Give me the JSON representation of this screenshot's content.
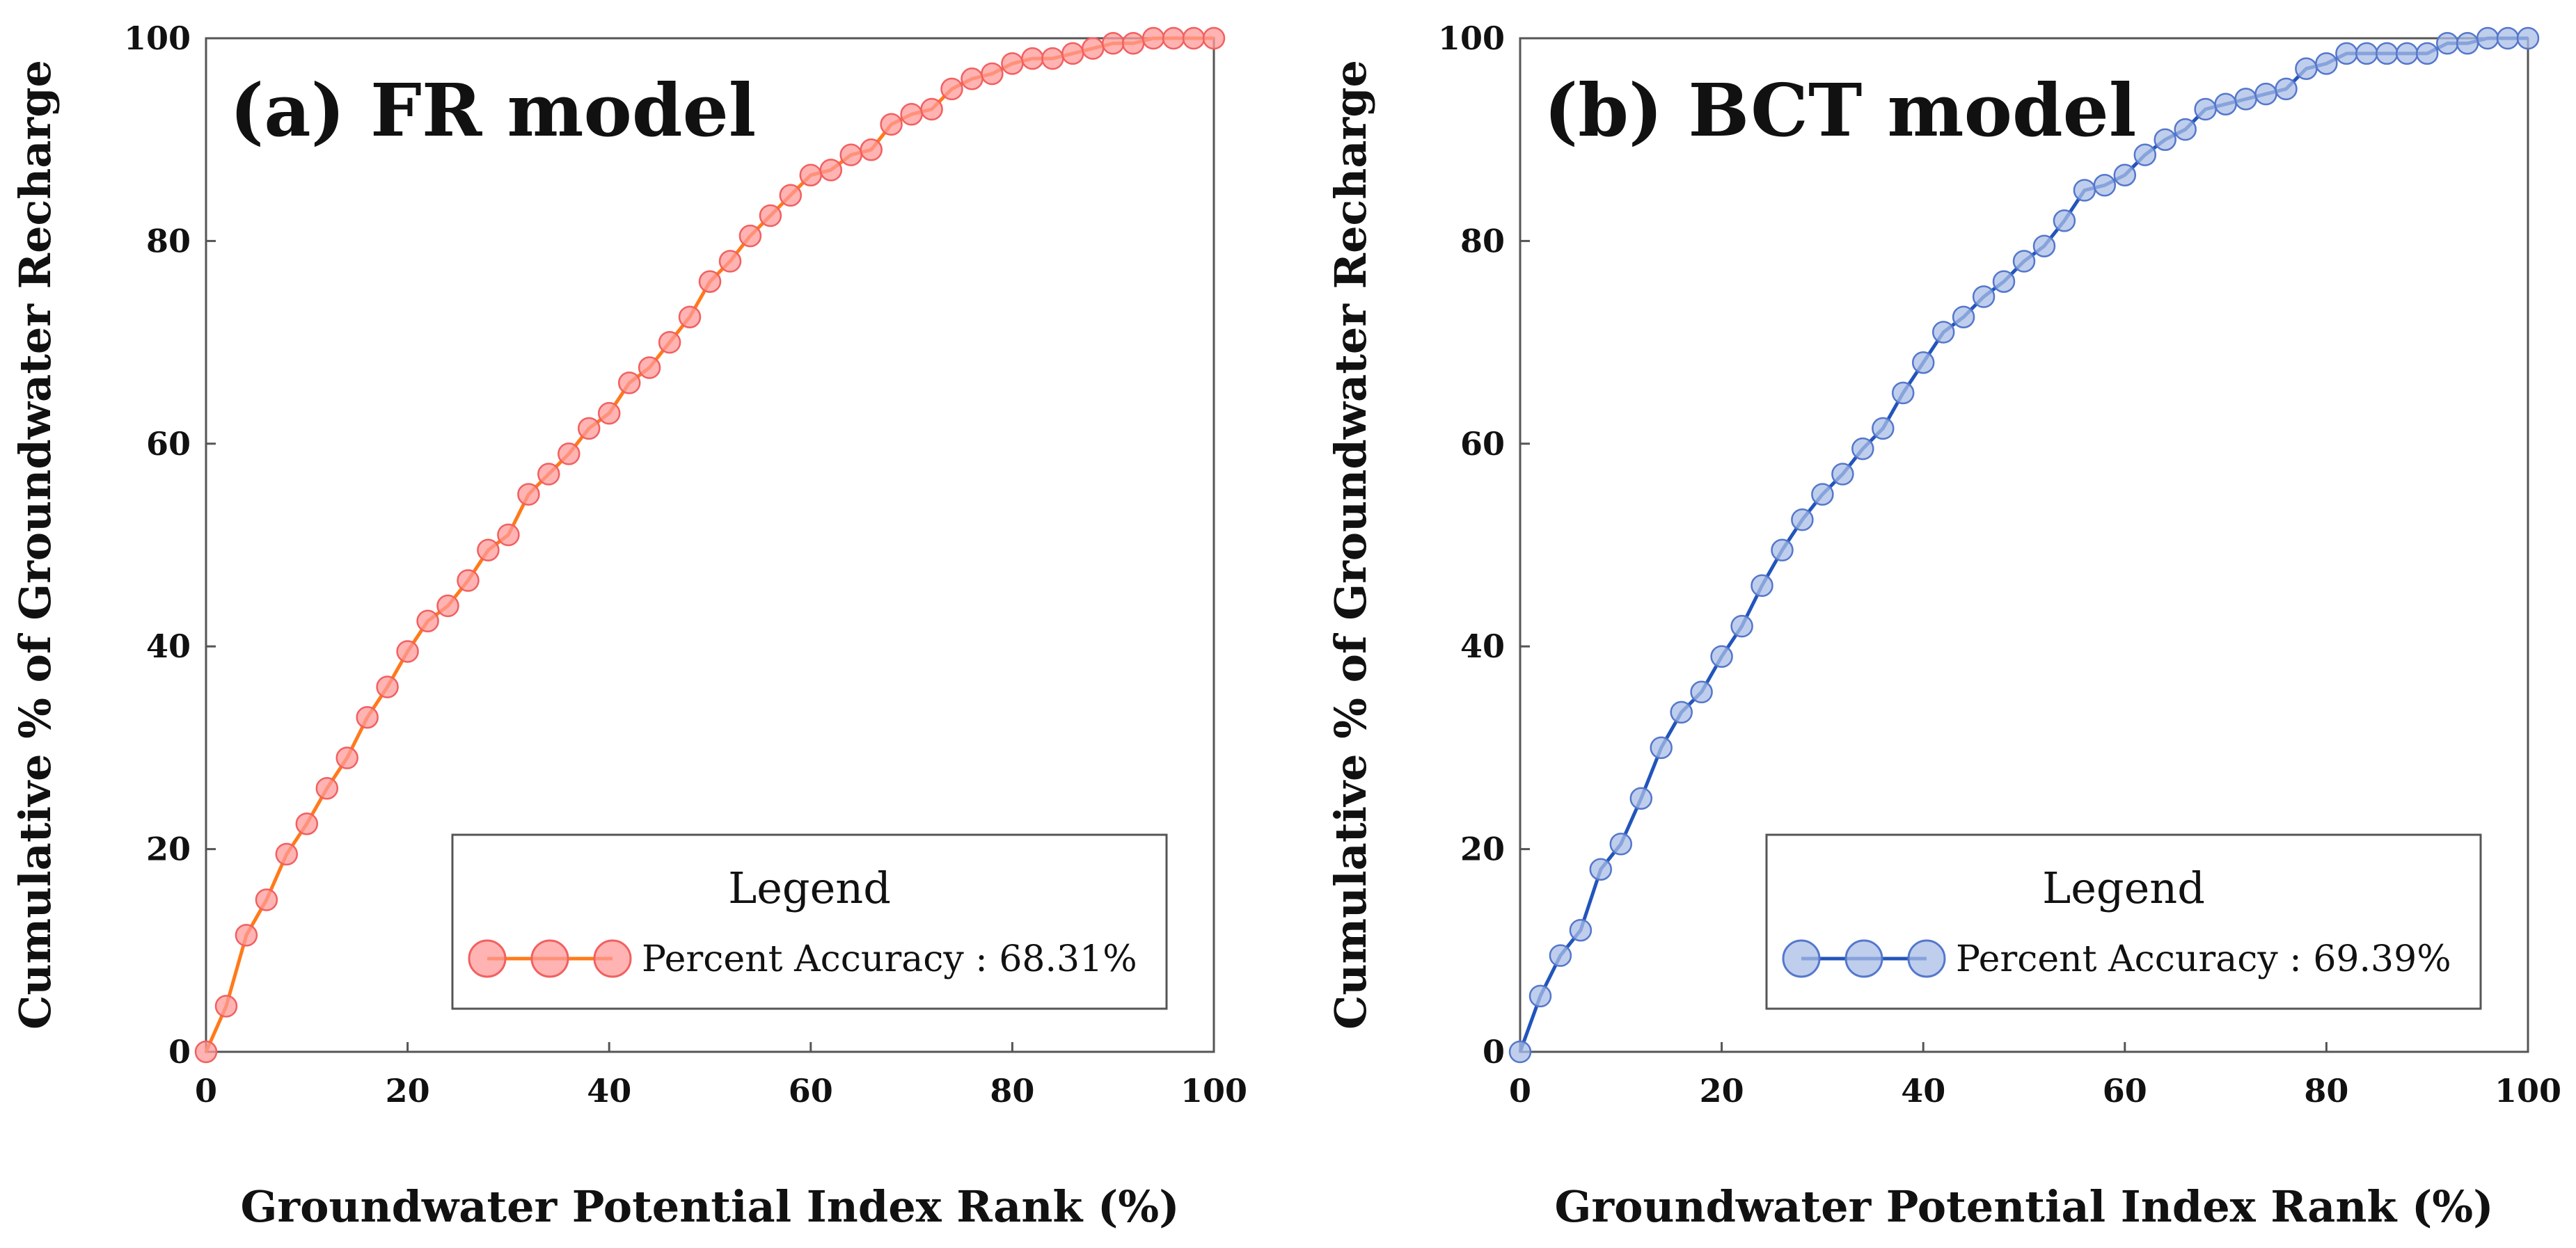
{
  "chart_data": [
    {
      "type": "line",
      "title": "(a) FR model",
      "xlabel": "Groundwater Potential Index Rank (%)",
      "ylabel": "Cumulative % of Groundwater Recharge",
      "xlim": [
        0,
        100
      ],
      "ylim": [
        0,
        100
      ],
      "x_ticks": [
        "0",
        "20",
        "40",
        "60",
        "80",
        "100"
      ],
      "y_ticks": [
        "0",
        "20",
        "40",
        "60",
        "80",
        "100"
      ],
      "grid": false,
      "legend": {
        "title": "Legend",
        "label": "Percent Accuracy : 68.31%",
        "position": "bottom-right"
      },
      "colors": {
        "line": "#ff7a1a",
        "marker_fill": "#ff9a9a",
        "marker_edge": "#f26060"
      },
      "series": [
        {
          "name": "Percent Accuracy : 68.31%",
          "x": [
            0,
            2,
            4,
            6,
            8,
            10,
            12,
            14,
            16,
            18,
            20,
            22,
            24,
            26,
            28,
            30,
            32,
            34,
            36,
            38,
            40,
            42,
            44,
            46,
            48,
            50,
            52,
            54,
            56,
            58,
            60,
            62,
            64,
            66,
            68,
            70,
            72,
            74,
            76,
            78,
            80,
            82,
            84,
            86,
            88,
            90,
            92,
            94,
            96,
            98,
            100
          ],
          "y": [
            0,
            4.5,
            11.5,
            15,
            19.5,
            22.5,
            26,
            29,
            33,
            36,
            39.5,
            42.5,
            44,
            46.5,
            49.5,
            51,
            55,
            57,
            59,
            61.5,
            63,
            66,
            67.5,
            70,
            72.5,
            76,
            78,
            80.5,
            82.5,
            84.5,
            86.5,
            87,
            88.5,
            89,
            91.5,
            92.5,
            93,
            95,
            96,
            96.5,
            97.5,
            98,
            98,
            98.5,
            99,
            99.5,
            99.5,
            100,
            100,
            100,
            100
          ]
        }
      ]
    },
    {
      "type": "line",
      "title": "(b) BCT model",
      "xlabel": "Groundwater Potential Index Rank (%)",
      "ylabel": "Cumulative % of Groundwater Recharge",
      "xlim": [
        0,
        100
      ],
      "ylim": [
        0,
        100
      ],
      "x_ticks": [
        "0",
        "20",
        "40",
        "60",
        "80",
        "100"
      ],
      "y_ticks": [
        "0",
        "20",
        "40",
        "60",
        "80",
        "100"
      ],
      "grid": false,
      "legend": {
        "title": "Legend",
        "label": "Percent Accuracy : 69.39%",
        "position": "bottom-right"
      },
      "colors": {
        "line": "#2255bb",
        "marker_fill": "#a9bde6",
        "marker_edge": "#5577cc"
      },
      "series": [
        {
          "name": "Percent Accuracy : 69.39%",
          "x": [
            0,
            2,
            4,
            6,
            8,
            10,
            12,
            14,
            16,
            18,
            20,
            22,
            24,
            26,
            28,
            30,
            32,
            34,
            36,
            38,
            40,
            42,
            44,
            46,
            48,
            50,
            52,
            54,
            56,
            58,
            60,
            62,
            64,
            66,
            68,
            70,
            72,
            74,
            76,
            78,
            80,
            82,
            84,
            86,
            88,
            90,
            92,
            94,
            96,
            98,
            100
          ],
          "y": [
            0,
            5.5,
            9.5,
            12,
            18,
            20.5,
            25,
            30,
            33.5,
            35.5,
            39,
            42,
            46,
            49.5,
            52.5,
            55,
            57,
            59.5,
            61.5,
            65,
            68,
            71,
            72.5,
            74.5,
            76,
            78,
            79.5,
            82,
            85,
            85.5,
            86.5,
            88.5,
            90,
            91,
            93,
            93.5,
            94,
            94.5,
            95,
            97,
            97.5,
            98.5,
            98.5,
            98.5,
            98.5,
            98.5,
            99.5,
            99.5,
            100,
            100,
            100
          ]
        }
      ]
    }
  ]
}
